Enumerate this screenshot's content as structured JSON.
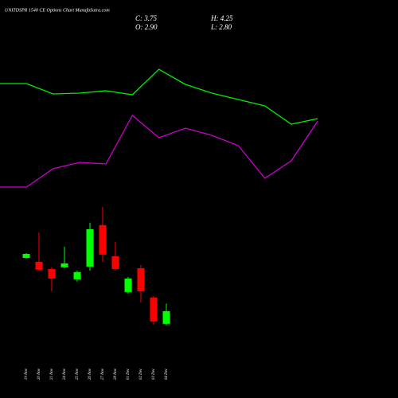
{
  "chart_data": [
    {
      "type": "line",
      "title": "UNITDSPR 1540 CE Options Chart MunafaSutra.com",
      "x": [
        0,
        1,
        2,
        3,
        4,
        5,
        6,
        7,
        8,
        9,
        10,
        11,
        12
      ],
      "xlim": [
        0,
        15
      ],
      "ylim": [
        0,
        100
      ],
      "series": [
        {
          "color": "#00ee00",
          "values": [
            58,
            58,
            52.8,
            53.2,
            54.4,
            52.4,
            65.2,
            57.6,
            53.2,
            50,
            46.8,
            37.6,
            40.4
          ]
        },
        {
          "color": "#cc00cc",
          "values": [
            6,
            6,
            15.2,
            18.4,
            17.6,
            42,
            30.8,
            35.6,
            32,
            26.8,
            10.4,
            19.2,
            39.2
          ]
        }
      ]
    },
    {
      "type": "candlestick",
      "labels": [
        "C: 3.75",
        "H: 4.25",
        "O: 2.90",
        "L: 2.80"
      ],
      "categories": [
        "19 Nov",
        "20 Nov",
        "21 Nov",
        "24 Nov",
        "25 Nov",
        "26 Nov",
        "27 Nov",
        "28 Nov",
        "01 Dec",
        "02 Dec",
        "03 Dec",
        "04 Dec"
      ],
      "open": [
        7.31,
        7.05,
        6.57,
        6.68,
        5.88,
        6.73,
        9.5,
        7.42,
        5.03,
        6.62,
        4.66,
        2.9
      ],
      "high": [
        7.63,
        9.02,
        6.68,
        8.06,
        6.46,
        9.66,
        10.72,
        8.38,
        6.04,
        6.84,
        4.76,
        4.25
      ],
      "low": [
        7.26,
        6.46,
        5.08,
        6.62,
        5.72,
        6.46,
        7.05,
        6.46,
        4.92,
        4.34,
        2.85,
        2.8
      ],
      "close": [
        7.58,
        6.52,
        5.93,
        6.94,
        6.36,
        9.23,
        7.53,
        6.57,
        5.93,
        5.08,
        3.06,
        3.75
      ],
      "up_color": "#00ff00",
      "down_color": "#ff0000",
      "ylim": [
        2.2,
        11.25
      ]
    }
  ]
}
